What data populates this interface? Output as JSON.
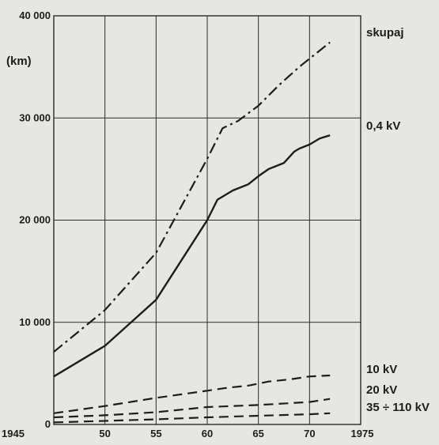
{
  "chart_data": {
    "type": "line",
    "unit_label": "(km)",
    "xlim": [
      1945,
      1975
    ],
    "ylim": [
      0,
      40000
    ],
    "x_ticks": [
      {
        "value": 1945,
        "label": "1945"
      },
      {
        "value": 1950,
        "label": "50"
      },
      {
        "value": 1955,
        "label": "55"
      },
      {
        "value": 1960,
        "label": "60"
      },
      {
        "value": 1965,
        "label": "65"
      },
      {
        "value": 1970,
        "label": "70"
      },
      {
        "value": 1975,
        "label": "1975"
      }
    ],
    "y_ticks": [
      {
        "value": 0,
        "label": "0"
      },
      {
        "value": 10000,
        "label": "10 000"
      },
      {
        "value": 20000,
        "label": "20 000"
      },
      {
        "value": 30000,
        "label": "30 000"
      },
      {
        "value": 40000,
        "label": "40 000"
      }
    ],
    "grid": true,
    "series": [
      {
        "name": "skupaj",
        "style": "dash-dot",
        "x": [
          1945,
          1950,
          1955,
          1960,
          1961.5,
          1963,
          1965,
          1967,
          1969,
          1970.5,
          1972
        ],
        "y": [
          7100,
          11200,
          16800,
          26000,
          29000,
          29700,
          31200,
          33200,
          35000,
          36200,
          37400
        ]
      },
      {
        "name": "0,4 kV",
        "style": "solid",
        "x": [
          1945,
          1950,
          1955,
          1960,
          1961,
          1962.5,
          1964,
          1965,
          1966,
          1967.5,
          1968.5,
          1969,
          1970,
          1971,
          1972
        ],
        "y": [
          4700,
          7700,
          12200,
          20000,
          22000,
          22900,
          23500,
          24300,
          25000,
          25600,
          26700,
          27000,
          27400,
          28000,
          28300
        ]
      },
      {
        "name": "10 kV",
        "style": "dashed",
        "x": [
          1945,
          1950,
          1955,
          1960,
          1962,
          1964,
          1966,
          1968,
          1970,
          1972
        ],
        "y": [
          1100,
          1800,
          2600,
          3300,
          3600,
          3800,
          4200,
          4400,
          4700,
          4800
        ]
      },
      {
        "name": "20 kV",
        "style": "dashed",
        "x": [
          1945,
          1950,
          1955,
          1960,
          1965,
          1970,
          1972
        ],
        "y": [
          700,
          900,
          1200,
          1700,
          1900,
          2200,
          2500
        ]
      },
      {
        "name": "35 ÷ 110 kV",
        "style": "dashed",
        "x": [
          1945,
          1950,
          1955,
          1960,
          1965,
          1970,
          1972
        ],
        "y": [
          200,
          350,
          500,
          700,
          850,
          1000,
          1100
        ]
      }
    ],
    "line_color": "#1d1d1d",
    "grid_color": "#2a2a2a",
    "background_color": "#e6e6e3"
  }
}
